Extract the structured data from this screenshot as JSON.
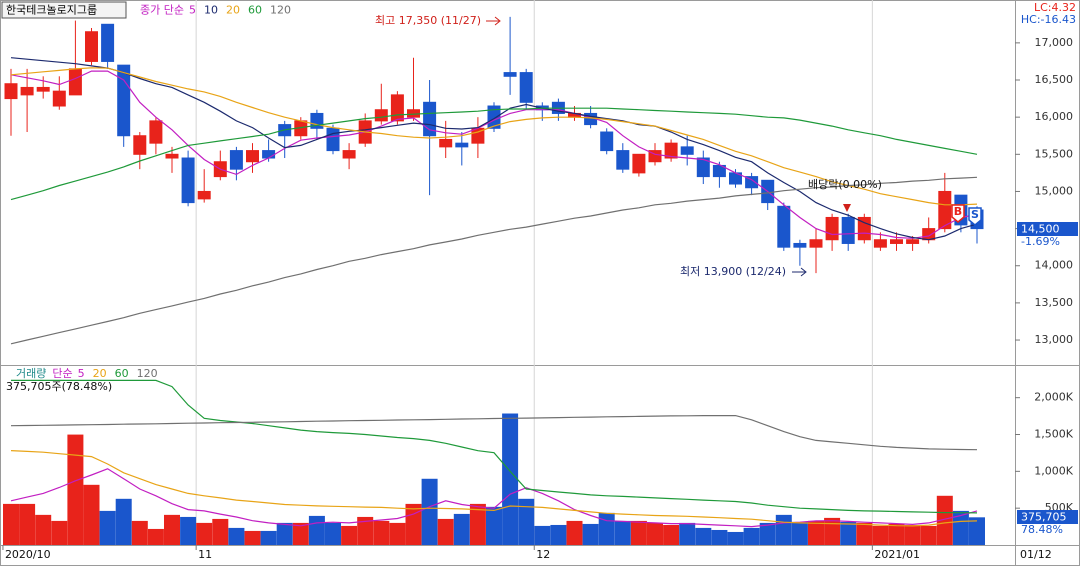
{
  "chart_data": [
    {
      "type": "candlestick",
      "title": "한국테크놀로지그룹",
      "legend_title": "종가 단순",
      "lc_label": "LC:4.32",
      "hc_label": "HC:-16.43",
      "high_note": "최고 17,350 (11/27)",
      "low_note": "최저 13,900 (12/24)",
      "event_note": "배당락(0.00%)",
      "price_tag": "14,500",
      "change_tag": "-1.69%",
      "signals": [
        {
          "label": "B"
        },
        {
          "label": "S"
        }
      ],
      "up_color": "#e8231b",
      "down_color": "#1a56cc",
      "ylim": [
        12664,
        17577
      ],
      "yticks": [
        {
          "value": 13000,
          "label": "13,000"
        },
        {
          "value": 13500,
          "label": "13,500"
        },
        {
          "value": 14000,
          "label": "14,000"
        },
        {
          "value": 14500,
          "label": "14,500"
        },
        {
          "value": 15000,
          "label": "15,000"
        },
        {
          "value": 15500,
          "label": "15,500"
        },
        {
          "value": 16000,
          "label": "16,000"
        },
        {
          "value": 16500,
          "label": "16,500"
        },
        {
          "value": 17000,
          "label": "17,000"
        }
      ],
      "open": [
        16250,
        16300,
        16350,
        16150,
        16300,
        16750,
        17250,
        16700,
        15500,
        15650,
        15450,
        15450,
        14900,
        15200,
        15550,
        15400,
        15550,
        15900,
        15750,
        16050,
        15850,
        15450,
        15650,
        15950,
        15950,
        16000,
        16200,
        15600,
        15650,
        15650,
        16150,
        16600,
        16600,
        16150,
        16200,
        16000,
        16050,
        15800,
        15550,
        15250,
        15400,
        15450,
        15600,
        15450,
        15350,
        15250,
        15200,
        15150,
        14800,
        14300,
        14250,
        14350,
        14650,
        14350,
        14250,
        14300,
        14300,
        14350,
        14500,
        14950,
        14750
      ],
      "high": [
        16650,
        16650,
        16550,
        16550,
        17300,
        17200,
        17250,
        16700,
        15800,
        16000,
        15600,
        15550,
        15300,
        15550,
        15600,
        15650,
        15700,
        15950,
        16000,
        16100,
        15900,
        15650,
        16050,
        16450,
        16350,
        16800,
        16500,
        15950,
        15800,
        16000,
        16200,
        17350,
        16650,
        16200,
        16250,
        16150,
        16150,
        15850,
        15650,
        15500,
        15650,
        15700,
        15750,
        15550,
        15400,
        15300,
        15250,
        15150,
        14850,
        14350,
        14500,
        14700,
        14700,
        14700,
        14450,
        14450,
        14400,
        14650,
        15250,
        14950,
        14800
      ],
      "low": [
        15750,
        15800,
        16250,
        16100,
        16300,
        16700,
        16650,
        15600,
        15300,
        15500,
        15250,
        14800,
        14850,
        15150,
        15150,
        15250,
        15400,
        15450,
        15700,
        15700,
        15500,
        15300,
        15600,
        15900,
        15900,
        15950,
        14950,
        15450,
        15350,
        15450,
        15800,
        16300,
        16100,
        15950,
        15950,
        15950,
        15850,
        15500,
        15250,
        15200,
        15350,
        15400,
        15350,
        15100,
        15050,
        15050,
        14950,
        14750,
        14200,
        14000,
        13900,
        14200,
        14200,
        14300,
        14200,
        14200,
        14200,
        14300,
        14450,
        14450,
        14300
      ],
      "close": [
        16450,
        16400,
        16400,
        16350,
        16650,
        17150,
        16750,
        15750,
        15750,
        15950,
        15500,
        14850,
        15000,
        15400,
        15300,
        15550,
        15450,
        15750,
        15950,
        15850,
        15550,
        15550,
        15950,
        16100,
        16300,
        16100,
        15750,
        15700,
        15600,
        15850,
        15850,
        16550,
        16200,
        16100,
        16050,
        16050,
        15900,
        15550,
        15300,
        15500,
        15550,
        15650,
        15500,
        15200,
        15200,
        15100,
        15050,
        14850,
        14250,
        14250,
        14350,
        14650,
        14300,
        14650,
        14350,
        14350,
        14350,
        14500,
        15000,
        14550,
        14500
      ],
      "series": [
        {
          "name": "5",
          "color": "#c21fc2",
          "values": [
            16570,
            16530,
            16490,
            16440,
            16520,
            16620,
            16620,
            16500,
            16200,
            16000,
            15830,
            15620,
            15430,
            15300,
            15230,
            15350,
            15450,
            15580,
            15690,
            15720,
            15740,
            15760,
            15800,
            15880,
            15970,
            15990,
            15830,
            15790,
            15770,
            15850,
            15960,
            16050,
            16100,
            16100,
            16100,
            16050,
            16000,
            15930,
            15750,
            15600,
            15500,
            15470,
            15450,
            15430,
            15360,
            15250,
            15160,
            15000,
            14820,
            14650,
            14500,
            14420,
            14430,
            14440,
            14420,
            14380,
            14370,
            14400,
            14540,
            14650,
            14690
          ]
        },
        {
          "name": "10",
          "color": "#1c2a6e",
          "values": [
            16800,
            16780,
            16760,
            16740,
            16720,
            16690,
            16660,
            16600,
            16520,
            16450,
            16400,
            16300,
            16200,
            16080,
            15950,
            15860,
            15720,
            15590,
            15620,
            15700,
            15780,
            15810,
            15830,
            15860,
            15890,
            15920,
            15900,
            15850,
            15840,
            15860,
            15980,
            16120,
            16170,
            16120,
            16080,
            16050,
            16010,
            15980,
            15950,
            15900,
            15880,
            15800,
            15700,
            15630,
            15550,
            15460,
            15400,
            15250,
            15120,
            15000,
            14850,
            14750,
            14680,
            14580,
            14500,
            14430,
            14380,
            14350,
            14400,
            14500,
            14560
          ]
        },
        {
          "name": "20",
          "color": "#e8a417",
          "values": [
            16570,
            16590,
            16610,
            16630,
            16650,
            16665,
            16660,
            16600,
            16540,
            16480,
            16430,
            16380,
            16340,
            16280,
            16200,
            16130,
            16060,
            16000,
            15950,
            15900,
            15860,
            15830,
            15800,
            15780,
            15750,
            15730,
            15720,
            15730,
            15750,
            15800,
            15880,
            15940,
            15970,
            15990,
            16000,
            16000,
            15990,
            15970,
            15940,
            15910,
            15880,
            15820,
            15760,
            15700,
            15620,
            15540,
            15480,
            15400,
            15320,
            15260,
            15200,
            15130,
            15080,
            15030,
            14970,
            14930,
            14890,
            14850,
            14820,
            14820,
            14830
          ]
        },
        {
          "name": "60",
          "color": "#1f9a3a",
          "values": [
            14890,
            14950,
            15010,
            15080,
            15140,
            15200,
            15260,
            15330,
            15410,
            15480,
            15550,
            15620,
            15650,
            15680,
            15710,
            15740,
            15770,
            15830,
            15860,
            15890,
            15920,
            15950,
            15980,
            16000,
            16030,
            16040,
            16050,
            16060,
            16070,
            16080,
            16100,
            16110,
            16110,
            16120,
            16120,
            16120,
            16120,
            16120,
            16110,
            16100,
            16090,
            16080,
            16070,
            16060,
            16050,
            16040,
            16020,
            16000,
            15990,
            15960,
            15920,
            15880,
            15830,
            15790,
            15750,
            15700,
            15660,
            15620,
            15580,
            15540,
            15500
          ]
        },
        {
          "name": "120",
          "color": "#707070",
          "values": [
            12950,
            13000,
            13050,
            13100,
            13150,
            13200,
            13250,
            13300,
            13360,
            13410,
            13460,
            13510,
            13560,
            13620,
            13670,
            13730,
            13780,
            13840,
            13890,
            13950,
            14000,
            14060,
            14100,
            14150,
            14190,
            14230,
            14280,
            14320,
            14360,
            14410,
            14450,
            14490,
            14520,
            14560,
            14600,
            14640,
            14670,
            14710,
            14750,
            14780,
            14820,
            14840,
            14870,
            14890,
            14910,
            14940,
            14960,
            14980,
            15010,
            15030,
            15050,
            15060,
            15080,
            15090,
            15110,
            15120,
            15140,
            15150,
            15170,
            15180,
            15190
          ]
        }
      ]
    },
    {
      "type": "bar",
      "title": "거래량",
      "legend_title": "단순",
      "info": "375,705주(78.48%)",
      "volume_tag": "375,705",
      "ratio_tag": "78.48%",
      "end_date": "01/12",
      "up_color": "#e8231b",
      "down_color": "#1a56cc",
      "categories": [
        "2020/10",
        null,
        null,
        null,
        null,
        null,
        null,
        null,
        null,
        null,
        null,
        null,
        "11",
        null,
        null,
        null,
        null,
        null,
        null,
        null,
        null,
        null,
        null,
        null,
        null,
        null,
        null,
        null,
        null,
        null,
        null,
        null,
        null,
        "12",
        null,
        null,
        null,
        null,
        null,
        null,
        null,
        null,
        null,
        null,
        null,
        null,
        null,
        null,
        null,
        null,
        null,
        null,
        null,
        null,
        "2021/01",
        null,
        null,
        null,
        null,
        null,
        null
      ],
      "ylim": [
        0,
        2430000
      ],
      "yticks": [
        {
          "value": 500000,
          "label": "500K"
        },
        {
          "value": 1000000,
          "label": "1,000K"
        },
        {
          "value": 1500000,
          "label": "1,500K"
        },
        {
          "value": 2000000,
          "label": "2,000K"
        }
      ],
      "values": [
        558000,
        558000,
        409000,
        327000,
        1499000,
        817000,
        463000,
        627000,
        327000,
        218000,
        409000,
        381000,
        300000,
        354000,
        232000,
        191000,
        191000,
        300000,
        300000,
        395000,
        300000,
        259000,
        381000,
        327000,
        300000,
        558000,
        899000,
        354000,
        422000,
        558000,
        518000,
        1785000,
        627000,
        259000,
        272000,
        327000,
        286000,
        436000,
        327000,
        327000,
        300000,
        272000,
        300000,
        232000,
        204000,
        177000,
        232000,
        300000,
        409000,
        313000,
        327000,
        368000,
        313000,
        300000,
        259000,
        286000,
        272000,
        259000,
        668000,
        463000,
        375705
      ],
      "series": [
        {
          "name": "5",
          "color": "#c21fc2",
          "values": [
            600000,
            650000,
            700000,
            780000,
            872000,
            950000,
            1035000,
            900000,
            760000,
            668000,
            560000,
            480000,
            463000,
            420000,
            380000,
            330000,
            300000,
            280000,
            260000,
            300000,
            310000,
            300000,
            320000,
            340000,
            360000,
            420000,
            520000,
            600000,
            550000,
            520000,
            500000,
            690000,
            776000,
            700000,
            600000,
            480000,
            400000,
            330000,
            320000,
            310000,
            300000,
            290000,
            290000,
            280000,
            270000,
            260000,
            250000,
            270000,
            300000,
            310000,
            327000,
            330000,
            320000,
            310000,
            300000,
            290000,
            280000,
            300000,
            350000,
            400000,
            463000
          ]
        },
        {
          "name": "20",
          "color": "#e8a417",
          "values": [
            1281000,
            1270000,
            1260000,
            1240000,
            1220000,
            1200000,
            1100000,
            980000,
            900000,
            820000,
            760000,
            700000,
            668000,
            640000,
            610000,
            590000,
            570000,
            550000,
            540000,
            531000,
            525000,
            520000,
            515000,
            510000,
            500000,
            490000,
            500000,
            495000,
            490000,
            480000,
            470000,
            530000,
            520000,
            510000,
            490000,
            470000,
            450000,
            430000,
            420000,
            410000,
            400000,
            395000,
            390000,
            380000,
            370000,
            360000,
            350000,
            330000,
            310000,
            300000,
            295000,
            290000,
            285000,
            280000,
            270000,
            262000,
            259000,
            270000,
            300000,
            320000,
            327000
          ]
        },
        {
          "name": "60",
          "color": "#1f9a3a",
          "values": [
            2234000,
            2234000,
            2234000,
            2234000,
            2234000,
            2234000,
            2234000,
            2234000,
            2234000,
            2234000,
            2150000,
            1900000,
            1720000,
            1690000,
            1670000,
            1650000,
            1620000,
            1590000,
            1560000,
            1540000,
            1526000,
            1515000,
            1500000,
            1480000,
            1460000,
            1444000,
            1420000,
            1380000,
            1330000,
            1280000,
            1253000,
            1000000,
            760000,
            740000,
            720000,
            700000,
            680000,
            668000,
            660000,
            650000,
            640000,
            630000,
            620000,
            610000,
            600000,
            590000,
            570000,
            540000,
            520000,
            500000,
            490000,
            480000,
            470000,
            463000,
            460000,
            455000,
            450000,
            445000,
            440000,
            438000,
            436000
          ]
        },
        {
          "name": "120",
          "color": "#707070",
          "values": [
            1620000,
            1622000,
            1625000,
            1628000,
            1630000,
            1633000,
            1636000,
            1640000,
            1643000,
            1646000,
            1650000,
            1653000,
            1656000,
            1660000,
            1663000,
            1666000,
            1670000,
            1673000,
            1676000,
            1680000,
            1683000,
            1687000,
            1690000,
            1693000,
            1697000,
            1700000,
            1703000,
            1707000,
            1710000,
            1713000,
            1717000,
            1720000,
            1723000,
            1726000,
            1730000,
            1733000,
            1736000,
            1740000,
            1743000,
            1746000,
            1750000,
            1752000,
            1754000,
            1756000,
            1757000,
            1757000,
            1700000,
            1620000,
            1540000,
            1470000,
            1420000,
            1400000,
            1380000,
            1360000,
            1340000,
            1325000,
            1315000,
            1305000,
            1300000,
            1296000,
            1294000
          ]
        }
      ]
    }
  ]
}
